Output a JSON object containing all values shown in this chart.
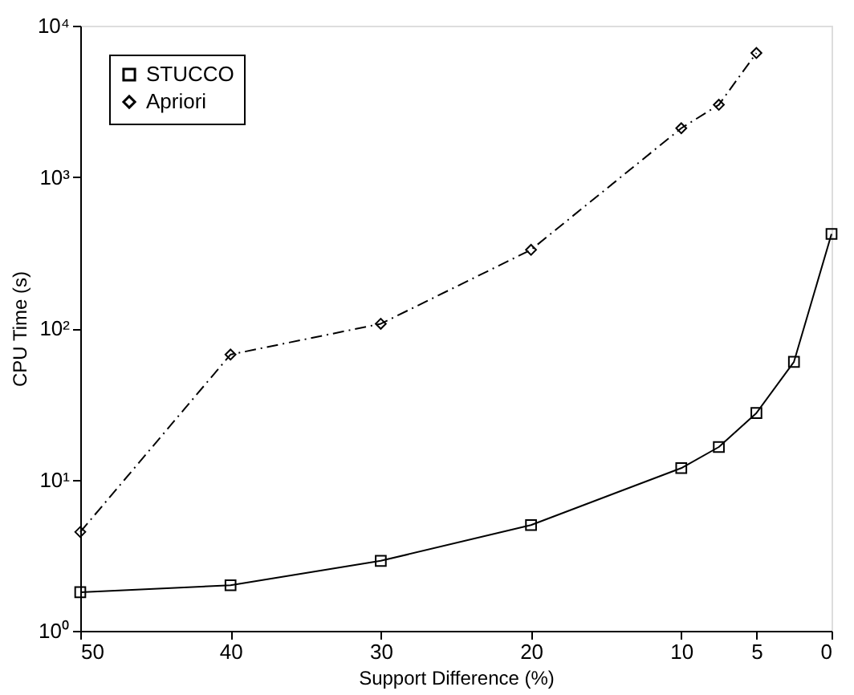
{
  "chart_data": {
    "type": "line",
    "xlabel": "Support Difference (%)",
    "ylabel": "CPU Time (s)",
    "xlim": [
      50,
      0
    ],
    "xticks": [
      50,
      40,
      30,
      20,
      10,
      5,
      0
    ],
    "ylim": [
      1,
      10000
    ],
    "yticks": [
      {
        "value": 1,
        "label": "10⁰"
      },
      {
        "value": 10,
        "label": "10¹"
      },
      {
        "value": 100,
        "label": "10²"
      },
      {
        "value": 1000,
        "label": "10³"
      },
      {
        "value": 10000,
        "label": "10⁴"
      }
    ],
    "log": "y",
    "grid": false,
    "legend": "top left",
    "series": [
      {
        "name": "STUCCO",
        "color": "#000000",
        "marker": "square",
        "line_style": "solid",
        "x": [
          50,
          40,
          30,
          20,
          10,
          7.5,
          5,
          2.5,
          0
        ],
        "values": [
          1.8,
          2.0,
          2.9,
          5.0,
          11.9,
          16.4,
          27.5,
          60,
          420
        ]
      },
      {
        "name": "Apriori",
        "color": "#000000",
        "marker": "diamond",
        "line_style": "dashdot",
        "x": [
          50,
          40,
          30,
          20,
          10,
          7.5,
          5
        ],
        "values": [
          4.5,
          67,
          107,
          330,
          2100,
          3000,
          6600
        ]
      }
    ]
  }
}
